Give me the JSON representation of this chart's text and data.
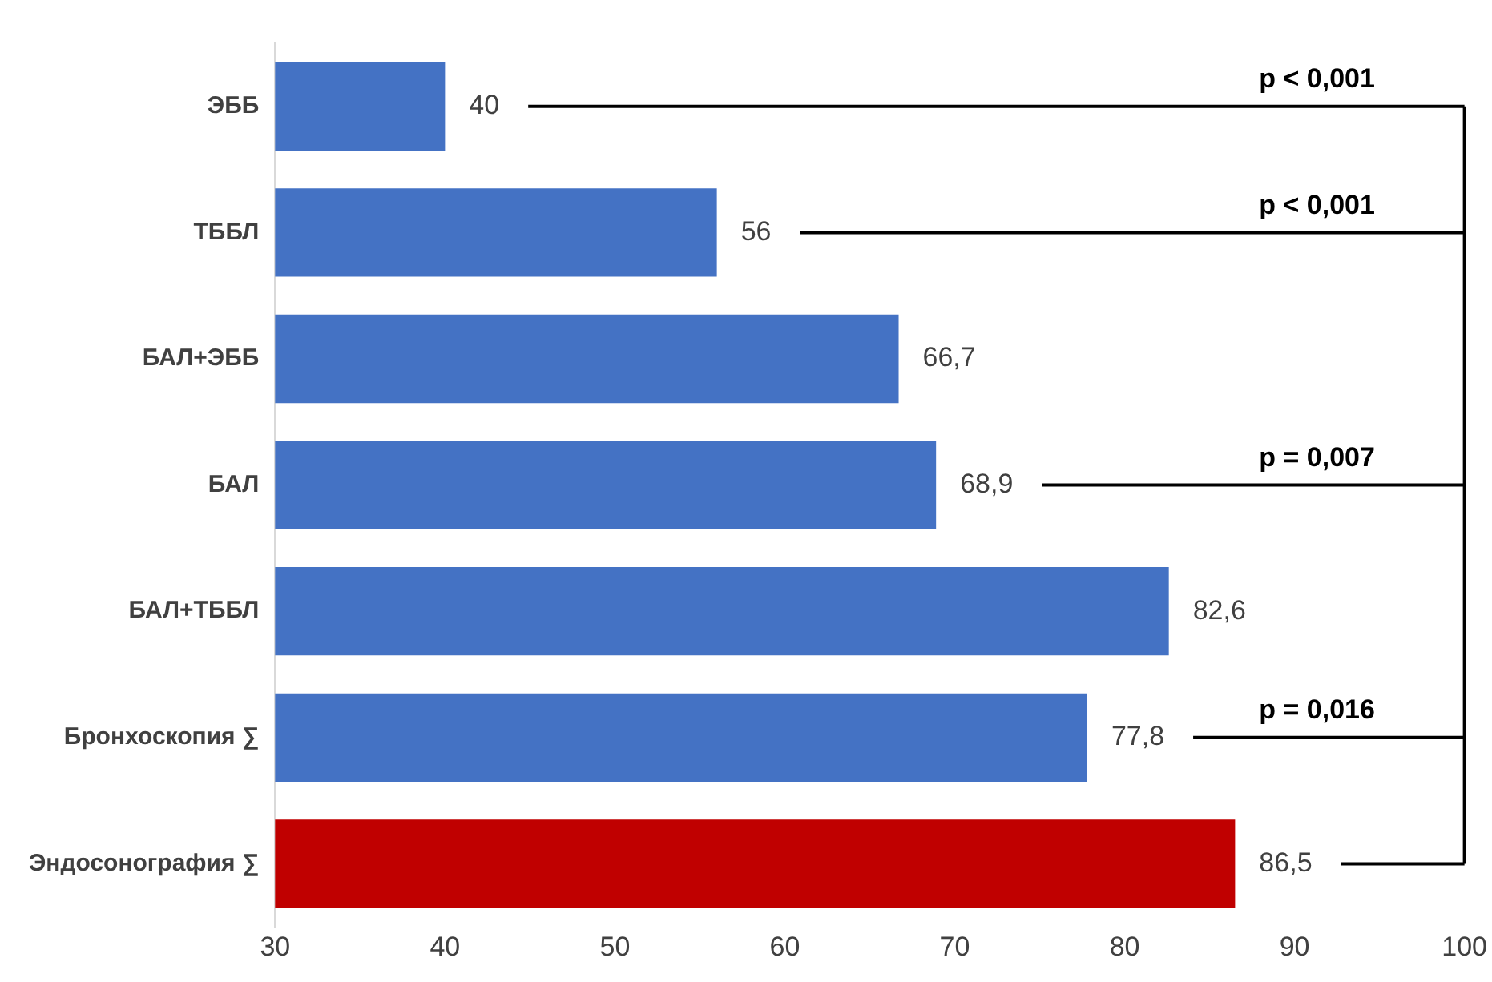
{
  "chart_data": {
    "type": "bar",
    "orientation": "horizontal",
    "categories": [
      "ЭББ",
      "ТББЛ",
      "БАЛ+ЭББ",
      "БАЛ",
      "БАЛ+ТББЛ",
      "Бронхоскопия ∑",
      "Эндосонография ∑"
    ],
    "values": [
      40,
      56,
      66.7,
      68.9,
      82.6,
      77.8,
      86.5
    ],
    "value_labels": [
      "40",
      "56",
      "66,7",
      "68,9",
      "82,6",
      "77,8",
      "86,5"
    ],
    "colors": [
      "#4472c4",
      "#4472c4",
      "#4472c4",
      "#4472c4",
      "#4472c4",
      "#4472c4",
      "#c00000"
    ],
    "xlim": [
      30,
      100
    ],
    "xticks": [
      30,
      40,
      50,
      60,
      70,
      80,
      90,
      100
    ],
    "grid": false,
    "annotations": [
      "p < 0,001",
      "p < 0,001",
      "p = 0,007",
      "p = 0,016"
    ]
  }
}
